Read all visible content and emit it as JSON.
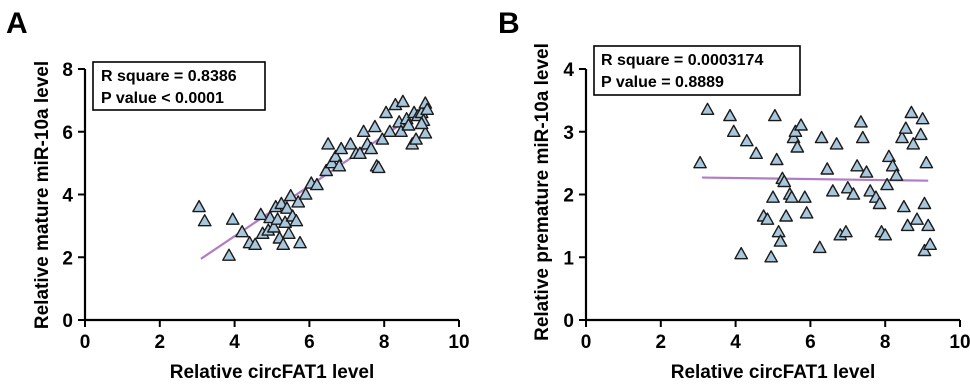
{
  "colors": {
    "marker_fill": "#a8c6dc",
    "marker_stroke": "#1a1a1a",
    "fit_line": "#b07cc6"
  },
  "chart_data": [
    {
      "panel": "A",
      "type": "scatter",
      "marker": "triangle",
      "xlabel": "Relative circFAT1 level",
      "ylabel": "Relative mature miR-10a level",
      "xlim": [
        0,
        10
      ],
      "ylim": [
        0,
        8
      ],
      "xticks": [
        0,
        2,
        4,
        6,
        8,
        10
      ],
      "yticks": [
        0,
        2,
        4,
        6,
        8
      ],
      "stats": [
        "R square = 0.8386",
        "P value < 0.0001"
      ],
      "fit_line": {
        "x": [
          3.1,
          8.4
        ],
        "y": [
          1.95,
          6.2
        ]
      },
      "points": [
        [
          3.05,
          3.6
        ],
        [
          3.2,
          3.15
        ],
        [
          3.95,
          3.2
        ],
        [
          3.85,
          2.05
        ],
        [
          4.2,
          2.8
        ],
        [
          4.4,
          2.45
        ],
        [
          4.55,
          2.4
        ],
        [
          4.7,
          3.35
        ],
        [
          4.75,
          2.75
        ],
        [
          4.9,
          2.85
        ],
        [
          4.95,
          3.25
        ],
        [
          5.05,
          2.95
        ],
        [
          5.1,
          3.6
        ],
        [
          5.15,
          3.2
        ],
        [
          5.2,
          2.6
        ],
        [
          5.25,
          3.7
        ],
        [
          5.3,
          2.4
        ],
        [
          5.35,
          3.1
        ],
        [
          5.4,
          3.55
        ],
        [
          5.45,
          2.75
        ],
        [
          5.5,
          3.95
        ],
        [
          5.55,
          3.3
        ],
        [
          5.65,
          3.15
        ],
        [
          5.7,
          3.75
        ],
        [
          5.75,
          2.45
        ],
        [
          5.9,
          4.0
        ],
        [
          6.05,
          4.35
        ],
        [
          6.2,
          4.3
        ],
        [
          6.45,
          4.75
        ],
        [
          6.5,
          5.6
        ],
        [
          6.6,
          5.0
        ],
        [
          6.7,
          5.2
        ],
        [
          6.8,
          4.9
        ],
        [
          6.85,
          5.45
        ],
        [
          7.1,
          5.6
        ],
        [
          7.25,
          5.3
        ],
        [
          7.35,
          5.3
        ],
        [
          7.45,
          6.0
        ],
        [
          7.55,
          5.6
        ],
        [
          7.65,
          5.45
        ],
        [
          7.75,
          6.15
        ],
        [
          7.8,
          4.9
        ],
        [
          7.85,
          4.85
        ],
        [
          7.95,
          5.75
        ],
        [
          8.05,
          6.6
        ],
        [
          8.15,
          6.0
        ],
        [
          8.3,
          6.85
        ],
        [
          8.4,
          6.3
        ],
        [
          8.45,
          6.0
        ],
        [
          8.5,
          6.95
        ],
        [
          8.6,
          6.4
        ],
        [
          8.65,
          6.2
        ],
        [
          8.75,
          5.6
        ],
        [
          8.8,
          6.6
        ],
        [
          8.85,
          5.75
        ],
        [
          8.9,
          6.5
        ],
        [
          9.0,
          6.6
        ],
        [
          9.05,
          6.35
        ],
        [
          9.1,
          6.9
        ],
        [
          9.15,
          6.7
        ],
        [
          9.1,
          5.95
        ],
        [
          9.0,
          6.25
        ]
      ]
    },
    {
      "panel": "B",
      "type": "scatter",
      "marker": "triangle",
      "xlabel": "Relative circFAT1 level",
      "ylabel": "Relative premature miR-10a level",
      "xlim": [
        0,
        10
      ],
      "ylim": [
        0,
        4
      ],
      "xticks": [
        0,
        2,
        4,
        6,
        8,
        10
      ],
      "yticks": [
        0,
        1,
        2,
        3,
        4
      ],
      "stats": [
        "R square = 0.0003174",
        "P value = 0.8889"
      ],
      "fit_line": {
        "x": [
          3.1,
          9.15
        ],
        "y": [
          2.27,
          2.22
        ]
      },
      "points": [
        [
          3.05,
          2.5
        ],
        [
          3.25,
          3.35
        ],
        [
          3.85,
          3.25
        ],
        [
          3.95,
          3.0
        ],
        [
          4.15,
          1.05
        ],
        [
          4.3,
          2.85
        ],
        [
          4.55,
          2.65
        ],
        [
          4.75,
          1.65
        ],
        [
          4.85,
          1.6
        ],
        [
          4.95,
          1.0
        ],
        [
          5.0,
          1.95
        ],
        [
          5.05,
          3.25
        ],
        [
          5.1,
          2.55
        ],
        [
          5.15,
          1.4
        ],
        [
          5.2,
          1.25
        ],
        [
          5.25,
          2.25
        ],
        [
          5.3,
          2.2
        ],
        [
          5.35,
          1.65
        ],
        [
          5.45,
          2.0
        ],
        [
          5.5,
          1.95
        ],
        [
          5.55,
          2.9
        ],
        [
          5.6,
          3.0
        ],
        [
          5.65,
          2.75
        ],
        [
          5.75,
          3.1
        ],
        [
          5.85,
          1.95
        ],
        [
          5.9,
          1.7
        ],
        [
          6.25,
          1.15
        ],
        [
          6.3,
          2.9
        ],
        [
          6.45,
          2.4
        ],
        [
          6.6,
          2.05
        ],
        [
          6.7,
          2.8
        ],
        [
          6.8,
          1.35
        ],
        [
          6.95,
          1.4
        ],
        [
          7.0,
          2.1
        ],
        [
          7.15,
          2.0
        ],
        [
          7.25,
          2.45
        ],
        [
          7.35,
          3.15
        ],
        [
          7.4,
          2.9
        ],
        [
          7.5,
          2.35
        ],
        [
          7.6,
          2.05
        ],
        [
          7.75,
          1.95
        ],
        [
          7.85,
          1.85
        ],
        [
          7.9,
          1.4
        ],
        [
          8.0,
          1.35
        ],
        [
          8.05,
          2.15
        ],
        [
          8.1,
          2.6
        ],
        [
          8.2,
          2.45
        ],
        [
          8.3,
          2.3
        ],
        [
          8.45,
          2.9
        ],
        [
          8.5,
          1.8
        ],
        [
          8.55,
          3.05
        ],
        [
          8.6,
          1.5
        ],
        [
          8.7,
          3.3
        ],
        [
          8.75,
          2.8
        ],
        [
          8.85,
          1.6
        ],
        [
          8.95,
          2.95
        ],
        [
          9.0,
          3.2
        ],
        [
          9.05,
          1.1
        ],
        [
          9.1,
          2.5
        ],
        [
          9.15,
          1.5
        ],
        [
          9.2,
          1.2
        ],
        [
          9.05,
          1.85
        ]
      ]
    }
  ]
}
